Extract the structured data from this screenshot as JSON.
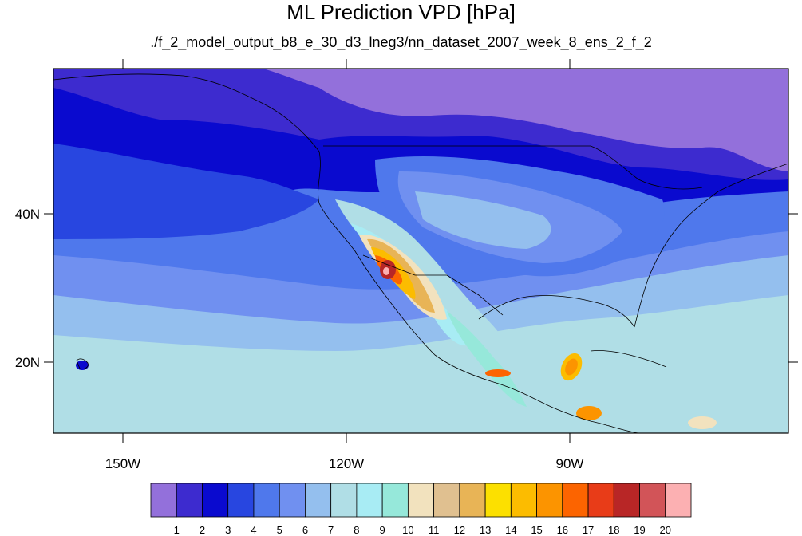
{
  "title": "ML Prediction VPD [hPa]",
  "subtitle": "./f_2_model_output_b8_e_30_d3_lneg3/nn_dataset_2007_week_8_ens_2_f_2",
  "axes": {
    "lat_labels": [
      "40N",
      "20N"
    ],
    "lon_labels": [
      "150W",
      "120W",
      "90W"
    ]
  },
  "colorbar": {
    "labels": [
      "1",
      "2",
      "3",
      "4",
      "5",
      "6",
      "7",
      "8",
      "9",
      "10",
      "11",
      "12",
      "13",
      "14",
      "15",
      "16",
      "17",
      "18",
      "19",
      "20"
    ],
    "colors": [
      "#9370db",
      "#3d2bcf",
      "#0a0acf",
      "#2846e0",
      "#4f78ec",
      "#7090f0",
      "#94bfee",
      "#b0dee6",
      "#a8ecf4",
      "#96e8da",
      "#f2e2be",
      "#e0c090",
      "#e8b456",
      "#fce000",
      "#fcbc00",
      "#fc9400",
      "#fc6400",
      "#e83c18",
      "#b82626",
      "#d25458",
      "#fcb0b2"
    ]
  },
  "map": {
    "projection": "cylindrical-equidistant",
    "lon_range": [
      -160,
      -60
    ],
    "lat_range": [
      10,
      60
    ],
    "background_level_color": "#4f78ec"
  }
}
